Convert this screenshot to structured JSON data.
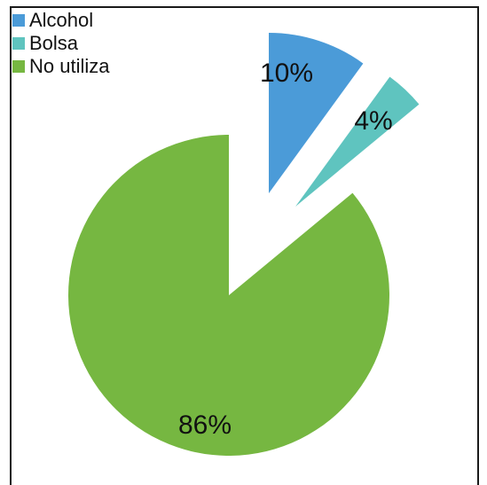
{
  "chart_data": {
    "type": "pie",
    "title": "",
    "legend_position": "top-left",
    "slices": [
      {
        "name": "Alcohol",
        "value": 10,
        "label": "10%",
        "color": "#4b9bd8"
      },
      {
        "name": "Bolsa",
        "value": 4,
        "label": "4%",
        "color": "#5fc4bf"
      },
      {
        "name": "No utiliza",
        "value": 86,
        "label": "86%",
        "color": "#76b741"
      }
    ]
  }
}
